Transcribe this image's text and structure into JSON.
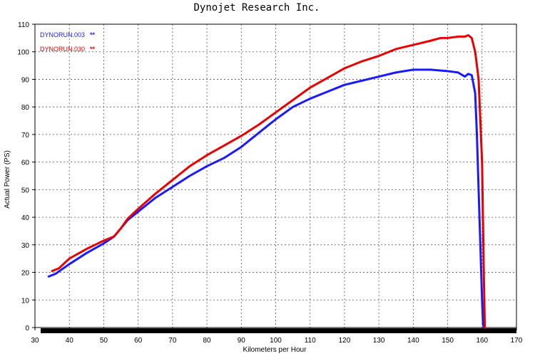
{
  "chart_data": {
    "type": "line",
    "title": "Dynojet  Research  Inc.",
    "xlabel": "Kilometers per Hour",
    "ylabel": "Actual Power (PS)",
    "xlim": [
      30,
      170
    ],
    "ylim": [
      0,
      110
    ],
    "x_ticks": [
      30,
      40,
      50,
      60,
      70,
      80,
      90,
      100,
      110,
      120,
      130,
      140,
      150,
      160,
      170
    ],
    "y_ticks": [
      0,
      10,
      20,
      30,
      40,
      50,
      60,
      70,
      80,
      90,
      100,
      110
    ],
    "grid": true,
    "legend_position": "top-left",
    "series": [
      {
        "name": "DYNORUN.003",
        "marker": "**",
        "color": "#1a1aff",
        "x": [
          34,
          36,
          40,
          45,
          50,
          53,
          55,
          57,
          60,
          65,
          70,
          75,
          80,
          85,
          90,
          95,
          100,
          105,
          110,
          115,
          120,
          125,
          130,
          135,
          140,
          145,
          150,
          153,
          155,
          156,
          157,
          158,
          158.5,
          159,
          159.5,
          160,
          160.3,
          160.5
        ],
        "y": [
          18.5,
          19.5,
          23,
          27,
          30.5,
          33,
          36,
          39,
          42,
          47,
          51,
          55,
          58.5,
          61.5,
          65.5,
          70.5,
          75.5,
          80,
          83,
          85.5,
          88,
          89.5,
          91,
          92.5,
          93.5,
          93.5,
          93,
          92.5,
          91,
          92,
          91.5,
          85,
          70,
          50,
          30,
          10,
          1,
          0
        ]
      },
      {
        "name": "DYNORUN.030",
        "marker": "**",
        "color": "#e60000",
        "x": [
          35,
          37,
          40,
          45,
          50,
          53,
          55,
          57,
          60,
          65,
          70,
          75,
          80,
          85,
          90,
          95,
          100,
          105,
          110,
          115,
          120,
          125,
          130,
          135,
          140,
          145,
          148,
          150,
          153,
          155,
          156,
          157,
          158,
          159,
          160,
          160.5,
          160.8
        ],
        "y": [
          20.5,
          21.5,
          25,
          28.5,
          31.5,
          33,
          36,
          39.5,
          43,
          48.5,
          53.5,
          58.5,
          62.5,
          66,
          69.5,
          73.5,
          78,
          82.5,
          87,
          90.5,
          94,
          96.5,
          98.5,
          101,
          102.5,
          104,
          105,
          105,
          105.5,
          105.5,
          106,
          105,
          100,
          90,
          60,
          20,
          0
        ]
      }
    ]
  }
}
